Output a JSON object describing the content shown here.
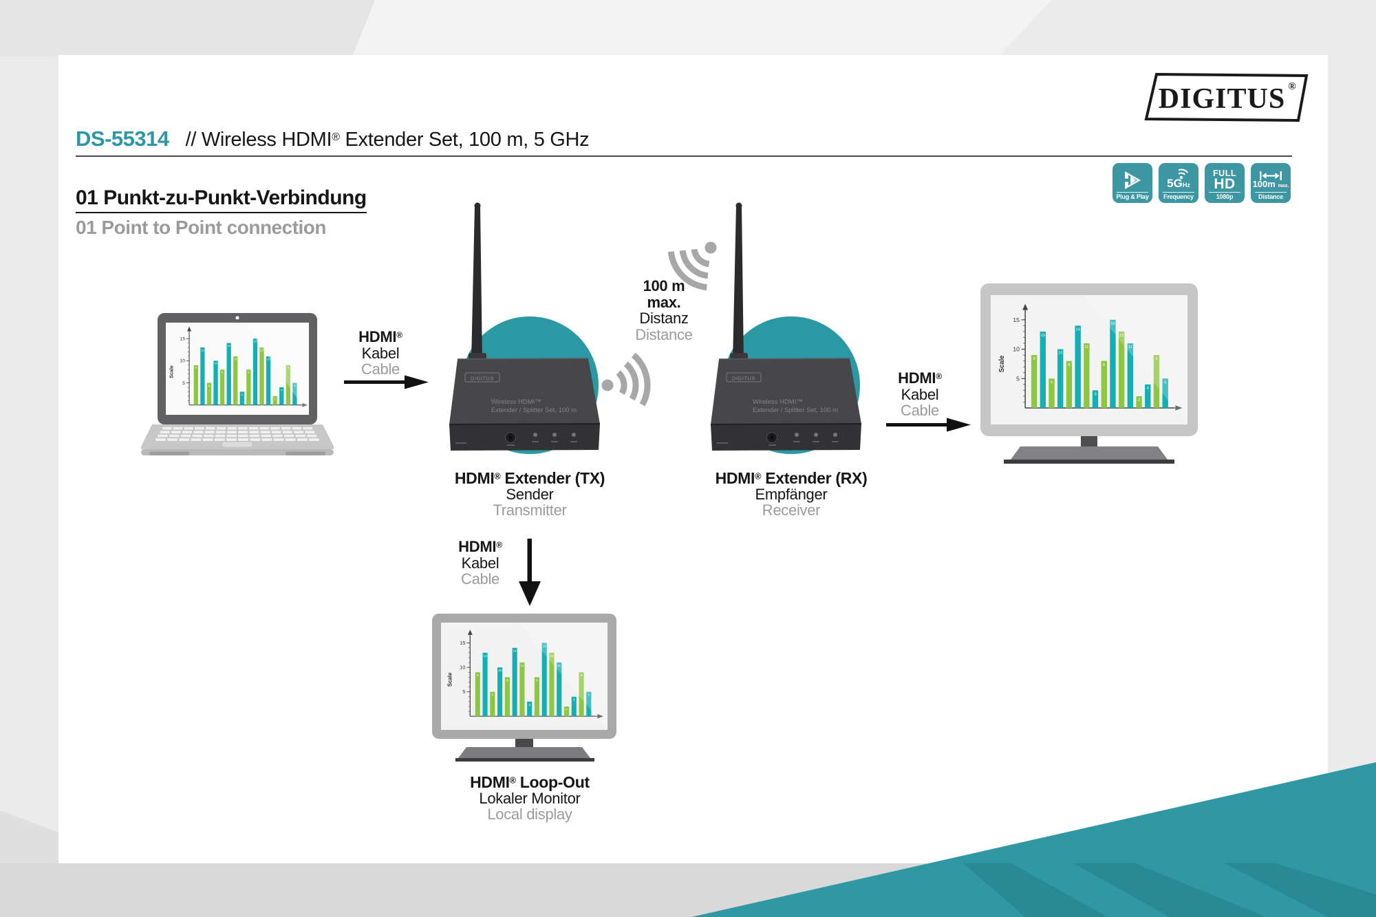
{
  "header": {
    "product_code": "DS-55314",
    "product_title": "// Wireless HDMI® Extender Set, 100 m, 5 GHz",
    "brand_logo": "DIGITUS",
    "brand_reg": "®"
  },
  "feature_badges": [
    {
      "icon": "play-icon",
      "label": "Plug & Play"
    },
    {
      "icon": "wifi-icon",
      "value": "5G",
      "unit": "Hz",
      "label": "Frequency"
    },
    {
      "line1": "FULL",
      "line2": "HD",
      "label": "1080p"
    },
    {
      "icon": "distance-icon",
      "value": "100m",
      "unit": "max.",
      "label": "Distance"
    }
  ],
  "section": {
    "heading_de": "01 Punkt-zu-Punkt-Verbindung",
    "heading_en": "01 Point to Point connection"
  },
  "labels": {
    "hdmi_cable": {
      "line1": "HDMI®",
      "line2": "Kabel",
      "line3": "Cable"
    },
    "distance": {
      "line1": "100 m",
      "line2": "max.",
      "line3": "Distanz",
      "line4": "Distance"
    },
    "tx": {
      "line1": "HDMI® Extender (TX)",
      "line2": "Sender",
      "line3": "Transmitter"
    },
    "rx": {
      "line1": "HDMI® Extender (RX)",
      "line2": "Empfänger",
      "line3": "Receiver"
    },
    "loop_out": {
      "line1": "HDMI® Loop-Out",
      "line2": "Lokaler Monitor",
      "line3": "Local display"
    }
  },
  "devices": {
    "badge_text": "DIGITUS",
    "front_text_line1": "Wireless HDMI™",
    "front_text_line2": "Extender / Splitter Set, 100 m"
  },
  "chart_data": {
    "type": "bar",
    "title": "",
    "xlabel": "",
    "ylabel": "Scale",
    "yticks": [
      5,
      10,
      15
    ],
    "ylim": [
      0,
      16
    ],
    "values": [
      9,
      13,
      5,
      10,
      8,
      14,
      11,
      3,
      8,
      15,
      13,
      11,
      2,
      4,
      9,
      5
    ],
    "bar_colors_alternating": [
      "#8dc63f",
      "#12afb4"
    ],
    "value_labels_shown": true,
    "grid": false,
    "legend": "none",
    "screens": [
      "laptop-screen",
      "tv-screen",
      "local-monitor-screen"
    ]
  },
  "colors": {
    "accent_teal_wedge": "#2f98a2",
    "accent_teal_dark": "#2a8a94",
    "device_circle_teal": "#2b99a4",
    "badge_teal": "#3d97a2",
    "product_code_teal": "#2e96a4",
    "secondary_text_gray": "#9b9b9b",
    "bar_green": "#8dc63f",
    "bar_teal": "#12afb4"
  }
}
